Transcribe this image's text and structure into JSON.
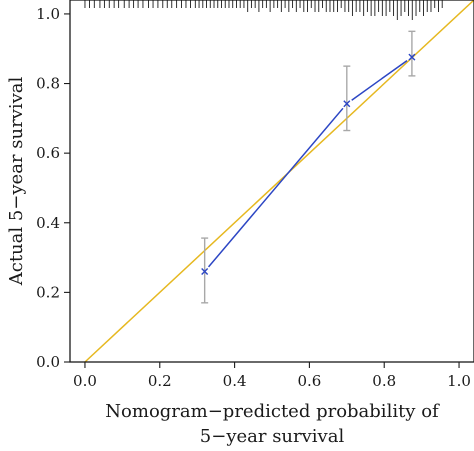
{
  "chart_data": {
    "type": "line",
    "xlabel_lines": [
      "Nomogram−predicted probability of",
      "5−year survival"
    ],
    "ylabel": "Actual 5−year survival",
    "xlim": [
      -0.04,
      1.04
    ],
    "ylim": [
      0,
      1.04
    ],
    "x_ticks": [
      0.0,
      0.2,
      0.4,
      0.6,
      0.8,
      1.0
    ],
    "x_tick_labels": [
      "0.0",
      "0.2",
      "0.4",
      "0.6",
      "0.8",
      "1.0"
    ],
    "y_ticks": [
      0.0,
      0.2,
      0.4,
      0.6,
      0.8,
      1.0
    ],
    "y_tick_labels": [
      "0.0",
      "0.2",
      "0.4",
      "0.6",
      "0.8",
      "1.0"
    ],
    "reference_line": {
      "x": [
        0,
        1.04
      ],
      "y": [
        0,
        1.04
      ],
      "color": "#e6b820"
    },
    "series": [
      {
        "x": [
          0.32,
          0.7,
          0.874
        ],
        "y": [
          0.26,
          0.742,
          0.876
        ],
        "err_low": [
          0.17,
          0.665,
          0.822
        ],
        "err_high": [
          0.356,
          0.85,
          0.95
        ],
        "marker": "x",
        "color": "#2c46c4",
        "err_color": "#a8a8a8"
      }
    ],
    "rug_x": [
      0.0,
      0.012,
      0.025,
      0.04,
      0.052,
      0.065,
      0.078,
      0.09,
      0.105,
      0.118,
      0.13,
      0.142,
      0.155,
      0.17,
      0.182,
      0.195,
      0.208,
      0.22,
      0.232,
      0.245,
      0.258,
      0.27,
      0.282,
      0.295,
      0.305,
      0.315,
      0.325,
      0.335,
      0.345,
      0.355,
      0.365,
      0.375,
      0.385,
      0.395,
      0.405,
      0.415,
      0.425,
      0.435,
      0.445,
      0.455,
      0.465,
      0.475,
      0.485,
      0.495,
      0.505,
      0.515,
      0.525,
      0.535,
      0.545,
      0.555,
      0.565,
      0.575,
      0.585,
      0.595,
      0.605,
      0.615,
      0.625,
      0.635,
      0.645,
      0.655,
      0.665,
      0.675,
      0.685,
      0.695,
      0.705,
      0.715,
      0.725,
      0.735,
      0.745,
      0.755,
      0.765,
      0.775,
      0.785,
      0.795,
      0.805,
      0.815,
      0.825,
      0.835,
      0.845,
      0.855,
      0.865,
      0.875,
      0.885,
      0.895,
      0.905,
      0.915,
      0.925,
      0.935,
      0.945,
      0.955
    ],
    "rug_len": [
      1,
      1,
      1,
      1,
      1,
      1,
      1,
      1,
      1,
      1,
      1,
      1,
      1,
      1,
      1,
      1,
      1,
      1,
      1,
      1,
      1,
      1,
      1,
      1,
      1,
      1,
      1,
      1,
      1,
      1,
      1,
      1,
      1,
      1,
      1,
      1,
      1,
      2,
      1,
      1,
      2,
      1,
      1,
      2,
      1,
      1,
      2,
      1,
      2,
      1,
      2,
      1,
      2,
      2,
      1,
      2,
      2,
      1,
      2,
      2,
      2,
      2,
      1,
      2,
      2,
      3,
      2,
      2,
      3,
      2,
      3,
      3,
      2,
      3,
      3,
      2,
      3,
      4,
      3,
      2,
      3,
      4,
      3,
      2,
      3,
      2,
      2,
      1,
      2,
      1
    ]
  }
}
